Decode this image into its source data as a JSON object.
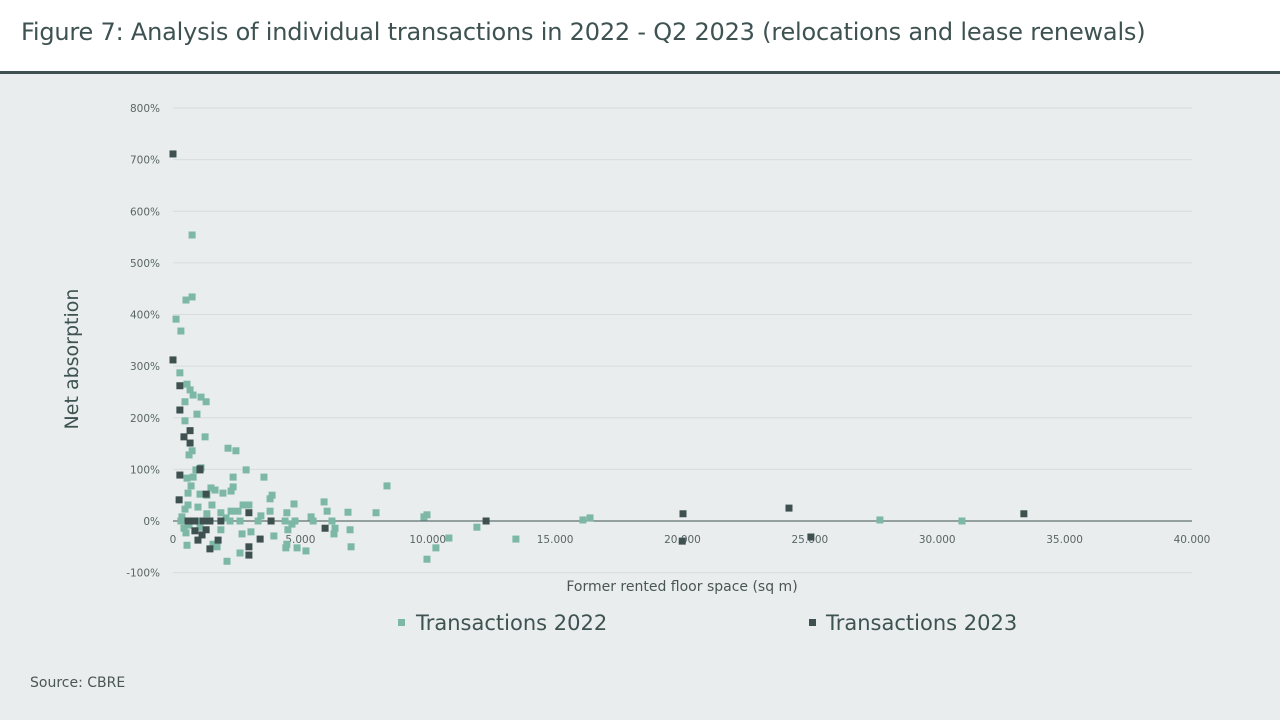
{
  "title": "Figure 7: Analysis of individual transactions in 2022 - Q2 2023 (relocations and lease renewals)",
  "source": "Source: CBRE",
  "chart_data": {
    "type": "scatter",
    "xlabel": "Former rented floor space (sq m)",
    "ylabel": "Net absorption",
    "xlim": [
      0,
      40000
    ],
    "ylim": [
      -100,
      800
    ],
    "xticks": [
      0,
      5000,
      10000,
      15000,
      20000,
      25000,
      30000,
      35000,
      40000
    ],
    "xtick_labels": [
      "0",
      "5.000",
      "10.000",
      "15.000",
      "20.000",
      "25.000",
      "30.000",
      "35.000",
      "40.000"
    ],
    "yticks": [
      -100,
      0,
      100,
      200,
      300,
      400,
      500,
      600,
      700,
      800
    ],
    "ytick_labels": [
      "-100%",
      "0%",
      "100%",
      "200%",
      "300%",
      "400%",
      "500%",
      "600%",
      "700%",
      "800%"
    ],
    "grid": "horizontal",
    "legend": "bottom",
    "series": [
      {
        "name": "Transactions 2022",
        "color": "#7db8a6",
        "points": [
          [
            750,
            554
          ],
          [
            750,
            434
          ],
          [
            510,
            428
          ],
          [
            120,
            391
          ],
          [
            310,
            368
          ],
          [
            270,
            287
          ],
          [
            550,
            265
          ],
          [
            670,
            254
          ],
          [
            790,
            244
          ],
          [
            1100,
            240
          ],
          [
            1300,
            231
          ],
          [
            470,
            231
          ],
          [
            940,
            207
          ],
          [
            470,
            194
          ],
          [
            1260,
            163
          ],
          [
            630,
            128
          ],
          [
            750,
            136
          ],
          [
            2160,
            141
          ],
          [
            2470,
            136
          ],
          [
            1100,
            103
          ],
          [
            900,
            99
          ],
          [
            2870,
            99
          ],
          [
            3570,
            85
          ],
          [
            2360,
            85
          ],
          [
            790,
            85
          ],
          [
            550,
            83
          ],
          [
            710,
            68
          ],
          [
            1490,
            64
          ],
          [
            2360,
            66
          ],
          [
            8400,
            68
          ],
          [
            590,
            54
          ],
          [
            1060,
            52
          ],
          [
            1960,
            54
          ],
          [
            3890,
            50
          ],
          [
            2280,
            58
          ],
          [
            1330,
            50
          ],
          [
            1650,
            60
          ],
          [
            3810,
            43
          ],
          [
            470,
            23
          ],
          [
            590,
            31
          ],
          [
            980,
            27
          ],
          [
            1530,
            31
          ],
          [
            2750,
            31
          ],
          [
            2980,
            31
          ],
          [
            4750,
            33
          ],
          [
            5930,
            37
          ],
          [
            6050,
            19
          ],
          [
            6870,
            17
          ],
          [
            7970,
            16
          ],
          [
            9970,
            12
          ],
          [
            9850,
            8
          ],
          [
            3810,
            19
          ],
          [
            3450,
            10
          ],
          [
            4470,
            16
          ],
          [
            5420,
            8
          ],
          [
            6240,
            0
          ],
          [
            16090,
            2
          ],
          [
            16370,
            6
          ],
          [
            27750,
            2
          ],
          [
            30970,
            0
          ],
          [
            2550,
            19
          ],
          [
            1880,
            16
          ],
          [
            2280,
            19
          ],
          [
            2080,
            6
          ],
          [
            1330,
            14
          ],
          [
            350,
            8
          ],
          [
            2240,
            0
          ],
          [
            2630,
            0
          ],
          [
            4400,
            0
          ],
          [
            4790,
            0
          ],
          [
            5500,
            0
          ],
          [
            310,
            0
          ],
          [
            1020,
            0
          ],
          [
            3340,
            0
          ],
          [
            430,
            -14
          ],
          [
            630,
            -8
          ],
          [
            1060,
            -12
          ],
          [
            510,
            -23
          ],
          [
            1880,
            -17
          ],
          [
            2710,
            -25
          ],
          [
            3060,
            -21
          ],
          [
            3960,
            -29
          ],
          [
            4510,
            -17
          ],
          [
            4670,
            -6
          ],
          [
            6360,
            -14
          ],
          [
            6950,
            -17
          ],
          [
            6320,
            -25
          ],
          [
            10830,
            -33
          ],
          [
            11930,
            -12
          ],
          [
            13460,
            -35
          ],
          [
            550,
            -47
          ],
          [
            1570,
            -45
          ],
          [
            1730,
            -50
          ],
          [
            2630,
            -62
          ],
          [
            2120,
            -78
          ],
          [
            4470,
            -45
          ],
          [
            4430,
            -52
          ],
          [
            4870,
            -52
          ],
          [
            5220,
            -58
          ],
          [
            6990,
            -50
          ],
          [
            10320,
            -52
          ],
          [
            9970,
            -74
          ]
        ]
      },
      {
        "name": "Transactions 2023",
        "color": "#3e5050",
        "points": [
          [
            0,
            711
          ],
          [
            0,
            312
          ],
          [
            270,
            262
          ],
          [
            270,
            215
          ],
          [
            430,
            163
          ],
          [
            670,
            175
          ],
          [
            670,
            151
          ],
          [
            1060,
            101
          ],
          [
            270,
            89
          ],
          [
            240,
            41
          ],
          [
            1060,
            99
          ],
          [
            1300,
            52
          ],
          [
            590,
            0
          ],
          [
            860,
            0
          ],
          [
            1180,
            0
          ],
          [
            1450,
            0
          ],
          [
            1880,
            0
          ],
          [
            2980,
            16
          ],
          [
            3850,
            0
          ],
          [
            860,
            -19
          ],
          [
            1300,
            -17
          ],
          [
            1140,
            -27
          ],
          [
            980,
            -37
          ],
          [
            1770,
            -37
          ],
          [
            1450,
            -54
          ],
          [
            3420,
            -35
          ],
          [
            2980,
            -50
          ],
          [
            2980,
            -66
          ],
          [
            5970,
            -14
          ],
          [
            12290,
            0
          ],
          [
            20020,
            14
          ],
          [
            19990,
            -39
          ],
          [
            24180,
            25
          ],
          [
            25040,
            -31
          ],
          [
            33400,
            14
          ]
        ]
      }
    ]
  }
}
